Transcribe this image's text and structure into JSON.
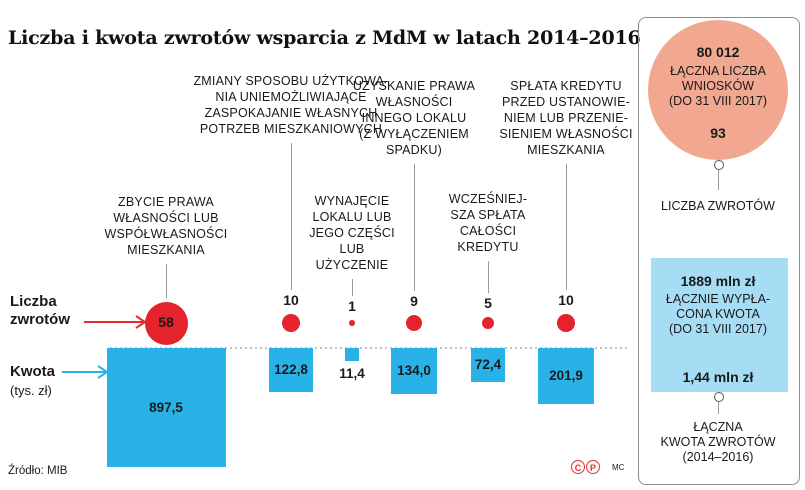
{
  "title": "Liczba i kwota zwrotów wsparcia z MdM w latach 2014–2016",
  "row_labels": {
    "count_line1": "Liczba",
    "count_line2": "zwrotów",
    "amount_line1": "Kwota",
    "amount_line2": "(tys. zł)"
  },
  "colors": {
    "red": "#e5232d",
    "blue": "#29b2e8",
    "light_blue": "#a6ddf5",
    "salmon": "#f2a890",
    "arrow_red": "#e52d2d",
    "arrow_blue": "#29b2e8"
  },
  "chart_data": {
    "type": "bar",
    "categories": [
      "ZBYCIE PRAWA WŁASNOŚCI LUB WSPÓŁWŁASNOŚCI MIESZKANIA",
      "ZMIANY SPOSOBU UŻYTKOWANIA UNIEMOŻLIWIAJĄCE ZASPOKAJANIE WŁASNYCH POTRZEB MIESZKANIOWYCH",
      "WYNAJĘCIE LOKALU LUB JEGO CZĘŚCI LUB UŻYCZENIE",
      "UZYSKANIE PRAWA WŁASNOŚCI INNEGO LOKALU (Z WYŁĄCZENIEM SPADKU)",
      "WCZEŚNIEJSZA SPŁATA CAŁOŚCI KREDYTU",
      "SPŁATA KREDYTU PRZED USTANOWIENIEM LUB PRZENIESIENIEM WŁASNOŚCI MIESZKANIA"
    ],
    "caption_lines": [
      [
        "ZBYCIE PRAWA",
        "WŁASNOŚCI LUB",
        "WSPÓŁWŁASNOŚCI",
        "MIESZKANIA"
      ],
      [
        "ZMIANY SPOSOBU UŻYTKOWA-",
        "NIA UNIEMOŻLIWIAJĄCE",
        "ZASPOKAJANIE WŁASNYCH",
        "POTRZEB MIESZKANIOWYCH"
      ],
      [
        "WYNAJĘCIE",
        "LOKALU LUB",
        "JEGO CZĘŚCI",
        "LUB",
        "UŻYCZENIE"
      ],
      [
        "UZYSKANIE PRAWA",
        "WŁASNOŚCI",
        "INNEGO LOKALU",
        "(Z WYŁĄCZENIEM",
        "SPADKU)"
      ],
      [
        "WCZEŚNIEJ-",
        "SZA SPŁATA",
        "CAŁOŚCI",
        "KREDYTU"
      ],
      [
        "SPŁATA KREDYTU",
        "PRZED USTANOWIE-",
        "NIEM LUB PRZENIE-",
        "SIENIEM WŁASNOŚCI",
        "MIESZKANIA"
      ]
    ],
    "series": [
      {
        "name": "Liczba zwrotów",
        "values": [
          58,
          10,
          1,
          9,
          5,
          10
        ]
      },
      {
        "name": "Kwota (tys. zł)",
        "values": [
          897.5,
          122.8,
          11.4,
          134.0,
          72.4,
          201.9
        ]
      }
    ],
    "value_labels": [
      "897,5",
      "122,8",
      "11,4",
      "134,0",
      "72,4",
      "201,9"
    ]
  },
  "summary": {
    "applications_value": "80 012",
    "applications_line1": "ŁĄCZNA LICZBA",
    "applications_line2": "WNIOSKÓW",
    "applications_line3": "(DO 31 VIII 2017)",
    "returns_count": "93",
    "returns_label": "LICZBA ZWROTÓW",
    "paid_value": "1889 mln zł",
    "paid_line1": "ŁĄCZNIE WYPŁA-",
    "paid_line2": "CONA KWOTA",
    "paid_line3": "(DO 31 VIII 2017)",
    "returned_value": "1,44 mln zł",
    "returned_line1": "ŁĄCZNA",
    "returned_line2": "KWOTA ZWROTÓW",
    "returned_line3": "(2014–2016)"
  },
  "source": "Źródło: MIB",
  "cc_marks": [
    "C",
    "P"
  ],
  "author": "MC"
}
